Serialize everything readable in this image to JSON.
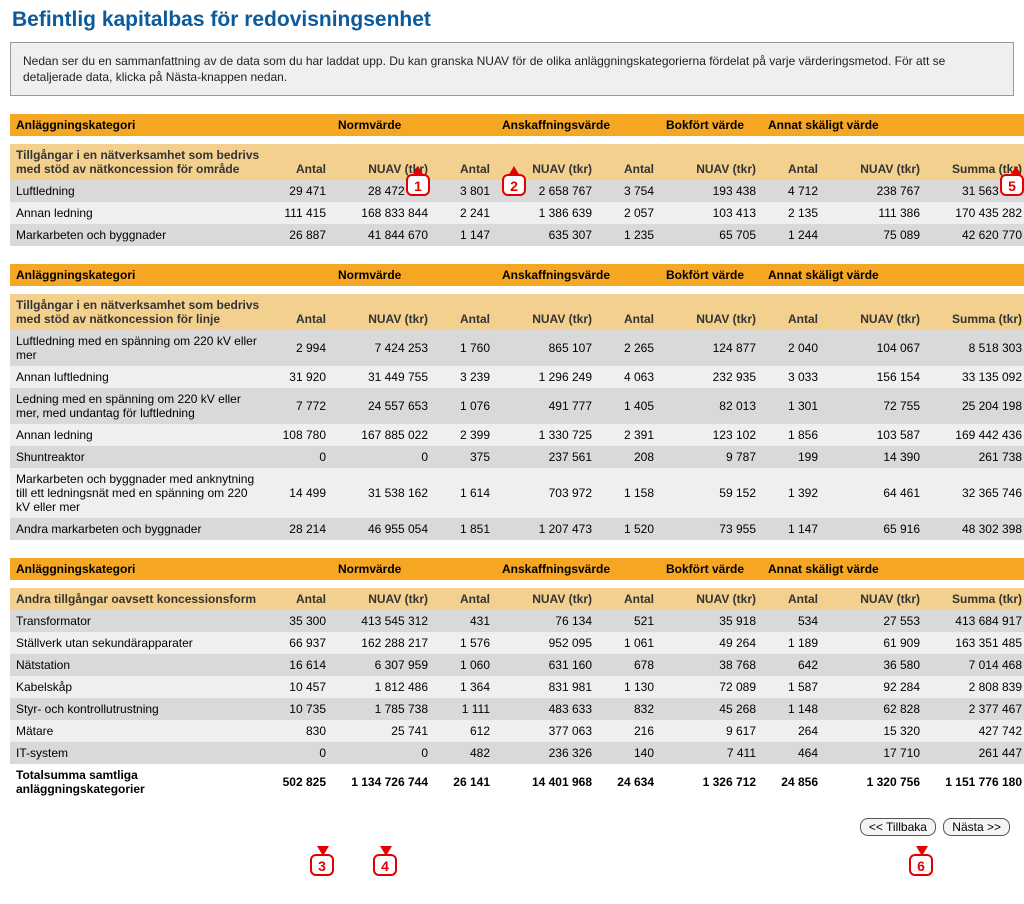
{
  "title": "Befintlig kapitalbas för redovisningsenhet",
  "intro": "Nedan ser du en sammanfattning av de data som du har laddat upp. Du kan granska NUAV för de olika anläggningskategorierna fördelat på varje värderingsmetod. För att se detaljerade data, klicka på Nästa-knappen nedan.",
  "groupHeaders": {
    "category": "Anläggningskategori",
    "g1": "Normvärde",
    "g2": "Anskaffningsvärde",
    "g3": "Bokfört värde",
    "g4": "Annat skäligt värde"
  },
  "colHeaders": {
    "antal": "Antal",
    "nuav": "NUAV (tkr)",
    "summa": "Summa (tkr)"
  },
  "section1": {
    "sub": "Tillgångar i en nätverksamhet som bedrivs med stöd av nätkoncession för område",
    "rows": [
      {
        "l": "Luftledning",
        "a1": "29 471",
        "n1": "28 472 879",
        "a2": "3 801",
        "n2": "2 658 767",
        "a3": "3 754",
        "n3": "193 438",
        "a4": "4 712",
        "n4": "238 767",
        "s": "31 563 851"
      },
      {
        "l": "Annan ledning",
        "a1": "111 415",
        "n1": "168 833 844",
        "a2": "2 241",
        "n2": "1 386 639",
        "a3": "2 057",
        "n3": "103 413",
        "a4": "2 135",
        "n4": "111 386",
        "s": "170 435 282"
      },
      {
        "l": "Markarbeten och byggnader",
        "a1": "26 887",
        "n1": "41 844 670",
        "a2": "1 147",
        "n2": "635 307",
        "a3": "1 235",
        "n3": "65 705",
        "a4": "1 244",
        "n4": "75 089",
        "s": "42 620 770"
      }
    ]
  },
  "section2": {
    "sub": "Tillgångar i en nätverksamhet som bedrivs med stöd av nätkoncession för linje",
    "rows": [
      {
        "l": "Luftledning med en spänning om 220 kV eller mer",
        "a1": "2 994",
        "n1": "7 424 253",
        "a2": "1 760",
        "n2": "865 107",
        "a3": "2 265",
        "n3": "124 877",
        "a4": "2 040",
        "n4": "104 067",
        "s": "8 518 303"
      },
      {
        "l": "Annan luftledning",
        "a1": "31 920",
        "n1": "31 449 755",
        "a2": "3 239",
        "n2": "1 296 249",
        "a3": "4 063",
        "n3": "232 935",
        "a4": "3 033",
        "n4": "156 154",
        "s": "33 135 092"
      },
      {
        "l": "Ledning med en spänning om 220 kV eller mer, med undantag för luftledning",
        "a1": "7 772",
        "n1": "24 557 653",
        "a2": "1 076",
        "n2": "491 777",
        "a3": "1 405",
        "n3": "82 013",
        "a4": "1 301",
        "n4": "72 755",
        "s": "25 204 198"
      },
      {
        "l": "Annan ledning",
        "a1": "108 780",
        "n1": "167 885 022",
        "a2": "2 399",
        "n2": "1 330 725",
        "a3": "2 391",
        "n3": "123 102",
        "a4": "1 856",
        "n4": "103 587",
        "s": "169 442 436"
      },
      {
        "l": "Shuntreaktor",
        "a1": "0",
        "n1": "0",
        "a2": "375",
        "n2": "237 561",
        "a3": "208",
        "n3": "9 787",
        "a4": "199",
        "n4": "14 390",
        "s": "261 738"
      },
      {
        "l": "Markarbeten och byggnader med anknytning till ett ledningsnät med en spänning om 220 kV eller mer",
        "a1": "14 499",
        "n1": "31 538 162",
        "a2": "1 614",
        "n2": "703 972",
        "a3": "1 158",
        "n3": "59 152",
        "a4": "1 392",
        "n4": "64 461",
        "s": "32 365 746"
      },
      {
        "l": "Andra markarbeten och byggnader",
        "a1": "28 214",
        "n1": "46 955 054",
        "a2": "1 851",
        "n2": "1 207 473",
        "a3": "1 520",
        "n3": "73 955",
        "a4": "1 147",
        "n4": "65 916",
        "s": "48 302 398"
      }
    ]
  },
  "section3": {
    "sub": "Andra tillgångar oavsett koncessionsform",
    "rows": [
      {
        "l": "Transformator",
        "a1": "35 300",
        "n1": "413 545 312",
        "a2": "431",
        "n2": "76 134",
        "a3": "521",
        "n3": "35 918",
        "a4": "534",
        "n4": "27 553",
        "s": "413 684 917"
      },
      {
        "l": "Ställverk utan sekundärapparater",
        "a1": "66 937",
        "n1": "162 288 217",
        "a2": "1 576",
        "n2": "952 095",
        "a3": "1 061",
        "n3": "49 264",
        "a4": "1 189",
        "n4": "61 909",
        "s": "163 351 485"
      },
      {
        "l": "Nätstation",
        "a1": "16 614",
        "n1": "6 307 959",
        "a2": "1 060",
        "n2": "631 160",
        "a3": "678",
        "n3": "38 768",
        "a4": "642",
        "n4": "36 580",
        "s": "7 014 468"
      },
      {
        "l": "Kabelskåp",
        "a1": "10 457",
        "n1": "1 812 486",
        "a2": "1 364",
        "n2": "831 981",
        "a3": "1 130",
        "n3": "72 089",
        "a4": "1 587",
        "n4": "92 284",
        "s": "2 808 839"
      },
      {
        "l": "Styr- och kontrollutrustning",
        "a1": "10 735",
        "n1": "1 785 738",
        "a2": "1 111",
        "n2": "483 633",
        "a3": "832",
        "n3": "45 268",
        "a4": "1 148",
        "n4": "62 828",
        "s": "2 377 467"
      },
      {
        "l": "Mätare",
        "a1": "830",
        "n1": "25 741",
        "a2": "612",
        "n2": "377 063",
        "a3": "216",
        "n3": "9 617",
        "a4": "264",
        "n4": "15 320",
        "s": "427 742"
      },
      {
        "l": "IT-system",
        "a1": "0",
        "n1": "0",
        "a2": "482",
        "n2": "236 326",
        "a3": "140",
        "n3": "7 411",
        "a4": "464",
        "n4": "17 710",
        "s": "261 447"
      }
    ]
  },
  "totals": {
    "label": "Totalsumma samtliga anläggningskategorier",
    "a1": "502 825",
    "n1": "1 134 726 744",
    "a2": "26 141",
    "n2": "14 401 968",
    "a3": "24 634",
    "n3": "1 326 712",
    "a4": "24 856",
    "n4": "1 320 756",
    "s": "1 151 776 180"
  },
  "buttons": {
    "back": "<< Tillbaka",
    "next": "Nästa >>"
  },
  "callouts": [
    "1",
    "2",
    "3",
    "4",
    "5",
    "6"
  ]
}
